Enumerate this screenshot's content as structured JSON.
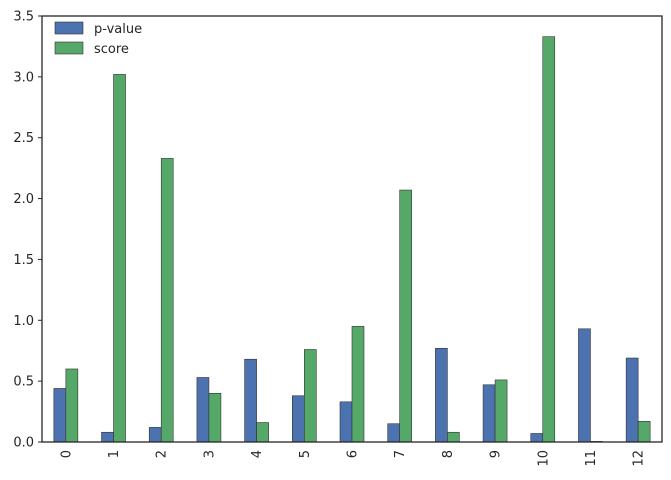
{
  "chart_data": {
    "type": "bar",
    "categories": [
      "0",
      "1",
      "2",
      "3",
      "4",
      "5",
      "6",
      "7",
      "8",
      "9",
      "10",
      "11",
      "12"
    ],
    "series": [
      {
        "name": "p-value",
        "color": "#4c72b0",
        "values": [
          0.44,
          0.08,
          0.12,
          0.53,
          0.68,
          0.38,
          0.33,
          0.15,
          0.77,
          0.47,
          0.07,
          0.93,
          0.69
        ]
      },
      {
        "name": "score",
        "color": "#55a868",
        "values": [
          0.6,
          3.02,
          2.33,
          0.4,
          0.16,
          0.76,
          0.95,
          2.07,
          0.08,
          0.51,
          3.33,
          0.005,
          0.17
        ]
      }
    ],
    "title": "",
    "xlabel": "",
    "ylabel": "",
    "ylim": [
      0,
      3.5
    ],
    "yticks": [
      "0.0",
      "0.5",
      "1.0",
      "1.5",
      "2.0",
      "2.5",
      "3.0",
      "3.5"
    ],
    "grid": false,
    "legend_position": "top-left",
    "x_tick_rotation": "vertical"
  }
}
